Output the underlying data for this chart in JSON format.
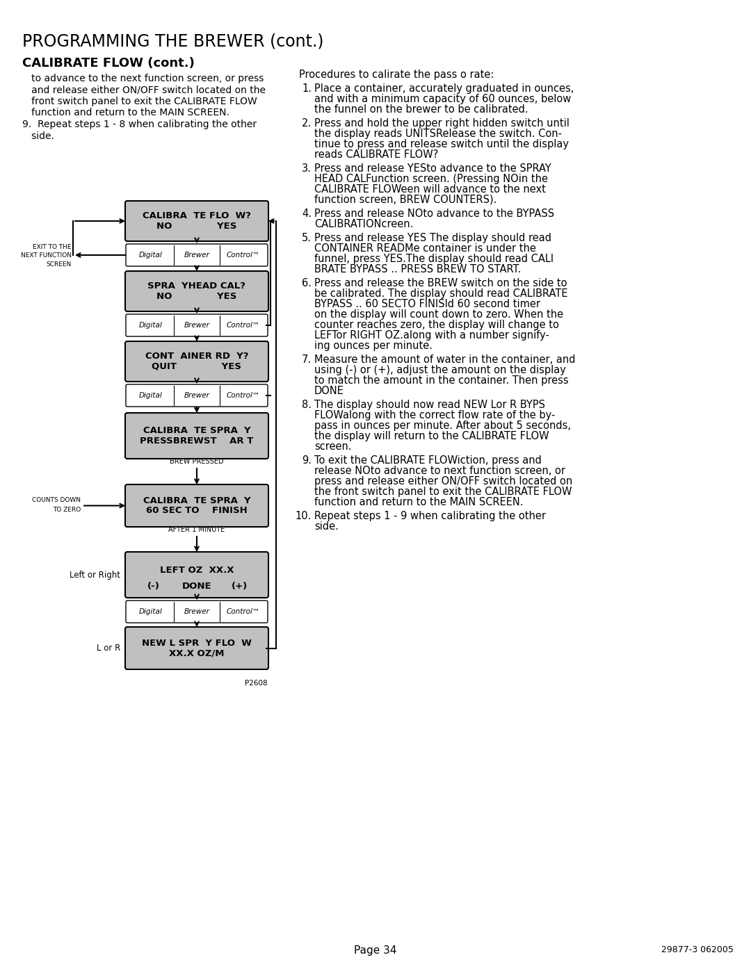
{
  "title": "PROGRAMMING THE BREWER (cont.)",
  "subtitle": "CALIBRATE FLOW (cont.)",
  "bg_color": "#ffffff",
  "box_gray": "#c0c0c0",
  "box_border": "#000000",
  "text_color": "#000000",
  "page_number": "Page 34",
  "doc_number": "29877-3 062005",
  "figure_number": "P2608",
  "left_body_lines": [
    "   to advance to the next function screen, or press",
    "   and release either ON/OFF switch located on the",
    "   front switch panel to exit the CALIBRATE FLOW",
    "   function and return to the MAIN SCREEN.",
    "9.  Repeat steps 1 - 8 when calibrating the other",
    "   side."
  ],
  "right_header": "Procedures to calirate the pass o rate:",
  "right_items": [
    [
      1,
      "Place a container, accurately graduated in ounces,",
      "and with a minimum capacity of 60 ounces, below",
      "the funnel on the brewer to be calibrated."
    ],
    [
      2,
      "Press and hold the upper right hidden switch until",
      "the display reads UNITSRelease the switch. Con-",
      "tinue to press and release switch until the display",
      "reads CALIBRATE FLOW?"
    ],
    [
      3,
      "Press and release YESto advance to the SPRAY",
      "HEAD CALFunction screen. (Pressing NOin the",
      "CALIBRATE FLOWeen will advance to the next",
      "function screen, BREW COUNTERS)."
    ],
    [
      4,
      "Press and release NOto advance to the BYPASS",
      "CALIBRATIONcreen."
    ],
    [
      5,
      "Press and release YES The display should read",
      "CONTAINER READMe container is under the",
      "funnel, press YES.The display should read CALI",
      "BRATE BYPASS .. PRESS BREW TO START."
    ],
    [
      6,
      "Press and release the BREW switch on the side to",
      "be calibrated. The display should read CALIBRATE",
      "BYPASS .. 60 SECTO FINISld 60 second timer",
      "on the display will count down to zero. When the",
      "counter reaches zero, the display will change to",
      "LEFTor RIGHT OZ.along with a number signify-",
      "ing ounces per minute."
    ],
    [
      7,
      "Measure the amount of water in the container, and",
      "using (-) or (+), adjust the amount on the display",
      "to match the amount in the container. Then press",
      "DONE"
    ],
    [
      8,
      "The display should now read NEW Lor R BYPS",
      "FLOWalong with the correct flow rate of the by-",
      "pass in ounces per minute. After about 5 seconds,",
      "the display will return to the CALIBRATE FLOW",
      "screen."
    ],
    [
      9,
      "To exit the CALIBRATE FLOWiction, press and",
      "release NOto advance to next function screen, or",
      "press and release either ON/OFF switch located on",
      "the front switch panel to exit the CALIBRATE FLOW",
      "function and return to the MAIN SCREEN."
    ],
    [
      10,
      "Repeat steps 1 - 9 when calibrating the other",
      "side."
    ]
  ]
}
